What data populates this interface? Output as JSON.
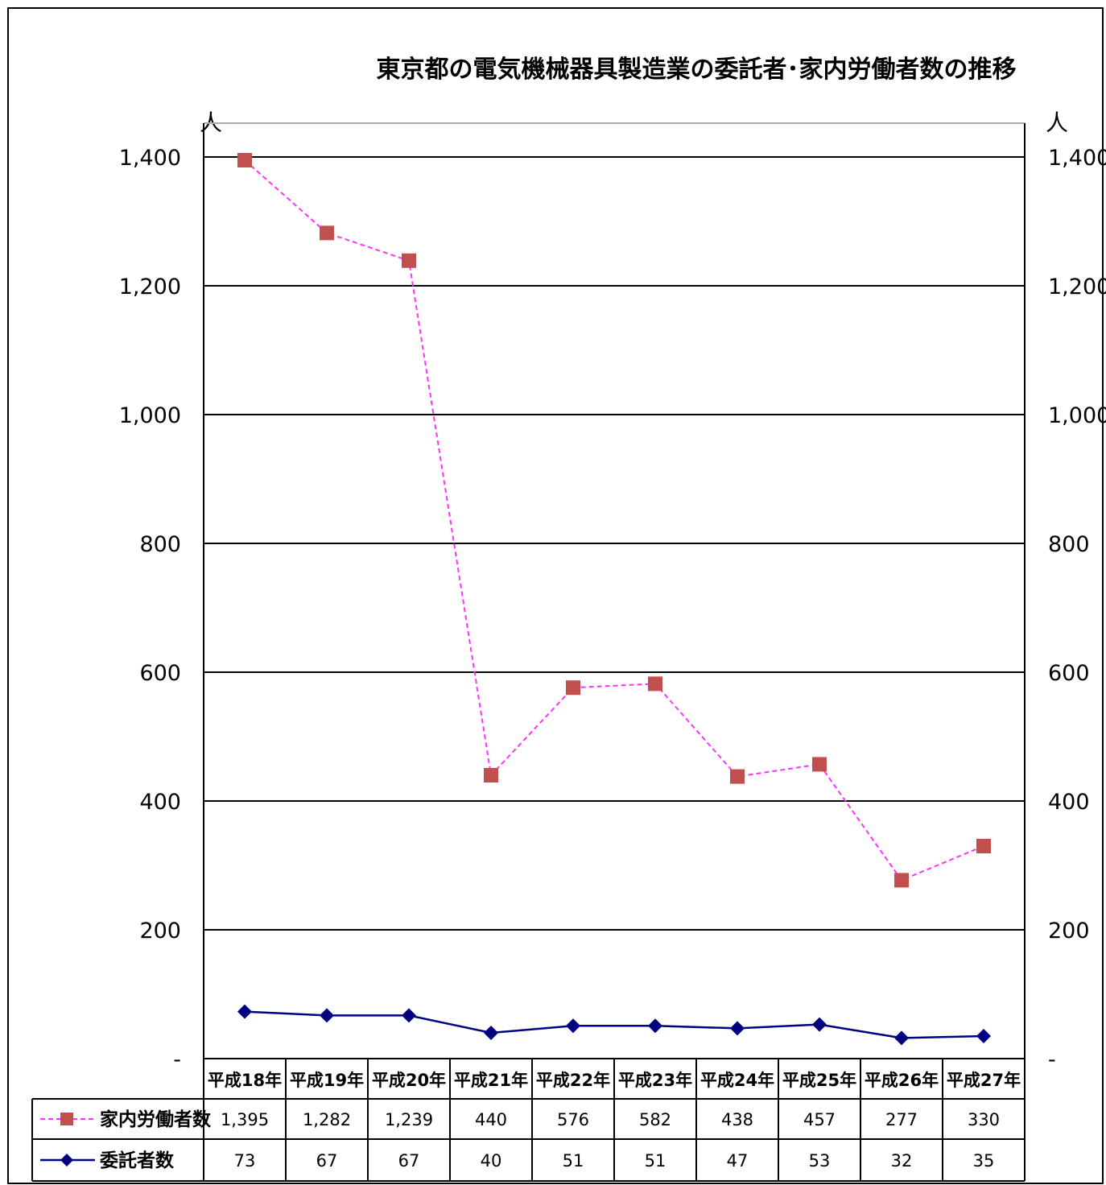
{
  "chart_data": {
    "type": "line",
    "title": "東京都の電気機械器具製造業の委託者･家内労働者数の推移",
    "y_unit_left": "人",
    "y_unit_right": "人",
    "ylim": [
      0,
      1400
    ],
    "yticks": [
      0,
      200,
      400,
      600,
      800,
      1000,
      1200,
      1400
    ],
    "ytick_labels": [
      "-",
      "200",
      "400",
      "600",
      "800",
      "1,000",
      "1,200",
      "1,400"
    ],
    "grid": true,
    "legend_placement": "data-table-left",
    "categories": [
      "平成18年",
      "平成19年",
      "平成20年",
      "平成21年",
      "平成22年",
      "平成23年",
      "平成24年",
      "平成25年",
      "平成26年",
      "平成27年"
    ],
    "series": [
      {
        "name": "家内労働者数",
        "marker": "square",
        "line_style": "dashed",
        "line_color": "#ff33ff",
        "marker_color": "#c0504d",
        "values": [
          1395,
          1282,
          1239,
          440,
          576,
          582,
          438,
          457,
          277,
          330
        ],
        "labels": [
          "1,395",
          "1,282",
          "1,239",
          "440",
          "576",
          "582",
          "438",
          "457",
          "277",
          "330"
        ]
      },
      {
        "name": "委託者数",
        "marker": "diamond",
        "line_style": "solid",
        "line_color": "#000080",
        "marker_color": "#000080",
        "values": [
          73,
          67,
          67,
          40,
          51,
          51,
          47,
          53,
          32,
          35
        ],
        "labels": [
          "73",
          "67",
          "67",
          "40",
          "51",
          "51",
          "47",
          "53",
          "32",
          "35"
        ]
      }
    ]
  }
}
